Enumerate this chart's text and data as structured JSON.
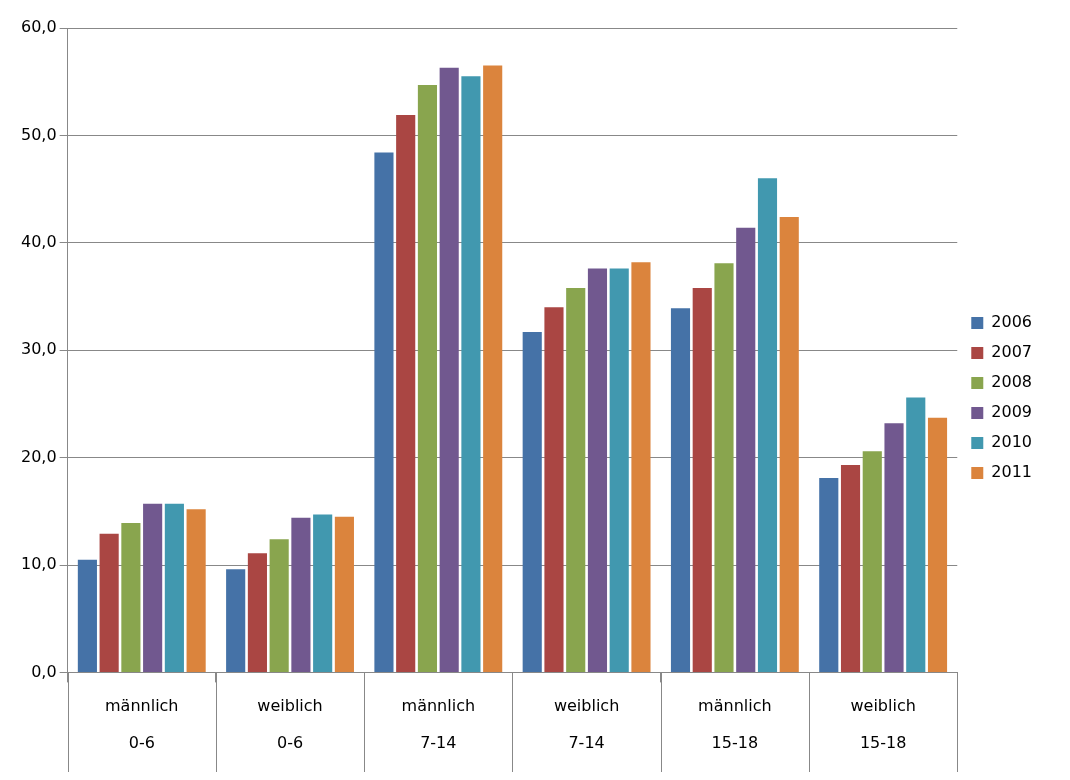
{
  "chart_data": {
    "type": "bar",
    "categories": [
      "männlich\n0-6",
      "weiblich\n0-6",
      "männlich\n7-14",
      "weiblich\n7-14",
      "männlich\n15-18",
      "weiblich\n15-18"
    ],
    "series": [
      {
        "name": "2006",
        "color": "#4572a7",
        "values": [
          10.5,
          9.6,
          48.4,
          31.7,
          33.9,
          18.1
        ]
      },
      {
        "name": "2007",
        "color": "#aa4643",
        "values": [
          12.9,
          11.1,
          51.9,
          34.0,
          35.8,
          19.3
        ]
      },
      {
        "name": "2008",
        "color": "#89a54e",
        "values": [
          13.9,
          12.4,
          54.7,
          35.8,
          38.1,
          20.6
        ]
      },
      {
        "name": "2009",
        "color": "#71588f",
        "values": [
          15.7,
          14.4,
          56.3,
          37.6,
          41.4,
          23.2
        ]
      },
      {
        "name": "2010",
        "color": "#4198af",
        "values": [
          15.7,
          14.7,
          55.5,
          37.6,
          46.0,
          25.6
        ]
      },
      {
        "name": "2011",
        "color": "#db843d",
        "values": [
          15.2,
          14.5,
          56.5,
          38.2,
          42.4,
          23.7
        ]
      }
    ],
    "ylim": [
      0,
      60
    ],
    "yticks": [
      {
        "value": 0,
        "label": "0,0"
      },
      {
        "value": 10,
        "label": "10,0"
      },
      {
        "value": 20,
        "label": "20,0"
      },
      {
        "value": 30,
        "label": "30,0"
      },
      {
        "value": 40,
        "label": "40,0"
      },
      {
        "value": 50,
        "label": "50,0"
      },
      {
        "value": 60,
        "label": "60,0"
      }
    ],
    "grid": "y",
    "legend": "right"
  }
}
